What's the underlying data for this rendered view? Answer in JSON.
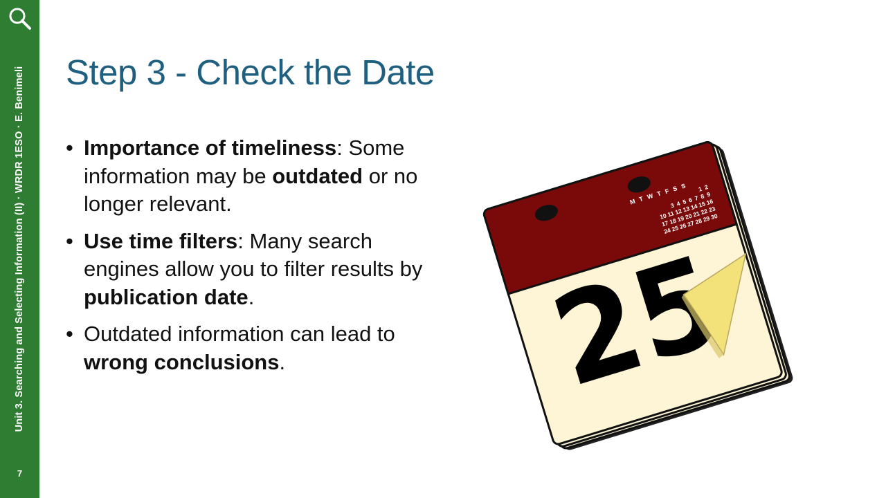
{
  "sidebar": {
    "search_icon": "search-icon",
    "label": "Unit 3. Searching and Selecting Information (II) · WRDR 1ESO · E. Benimeli",
    "page_number": "7",
    "color": "#2e7d32"
  },
  "slide": {
    "title": "Step 3 - Check the Date",
    "title_color": "#1f5f7f",
    "bullets": [
      {
        "bold1": "Importance of timeliness",
        "text1": ": Some information may be ",
        "bold2": "outdated",
        "text2": " or no longer relevant."
      },
      {
        "bold1": "Use time filters",
        "text1": ": Many search engines allow you to filter results by ",
        "bold2": "publication date",
        "text2": "."
      },
      {
        "text1": "Outdated information can lead to ",
        "bold1": "wrong conclusions",
        "text2": "."
      }
    ]
  },
  "calendar": {
    "day": "25",
    "weekdays": "M T W T F S S",
    "mini_rows": [
      "1 2",
      "3 4 5 6 7 8 9",
      "10 11 12 13 14 15 16",
      "17 18 19 20 21 22 23",
      "24 25 26 27 28 29 30"
    ],
    "header_color": "#7a0a0a",
    "page_color": "#fdf5d6"
  }
}
